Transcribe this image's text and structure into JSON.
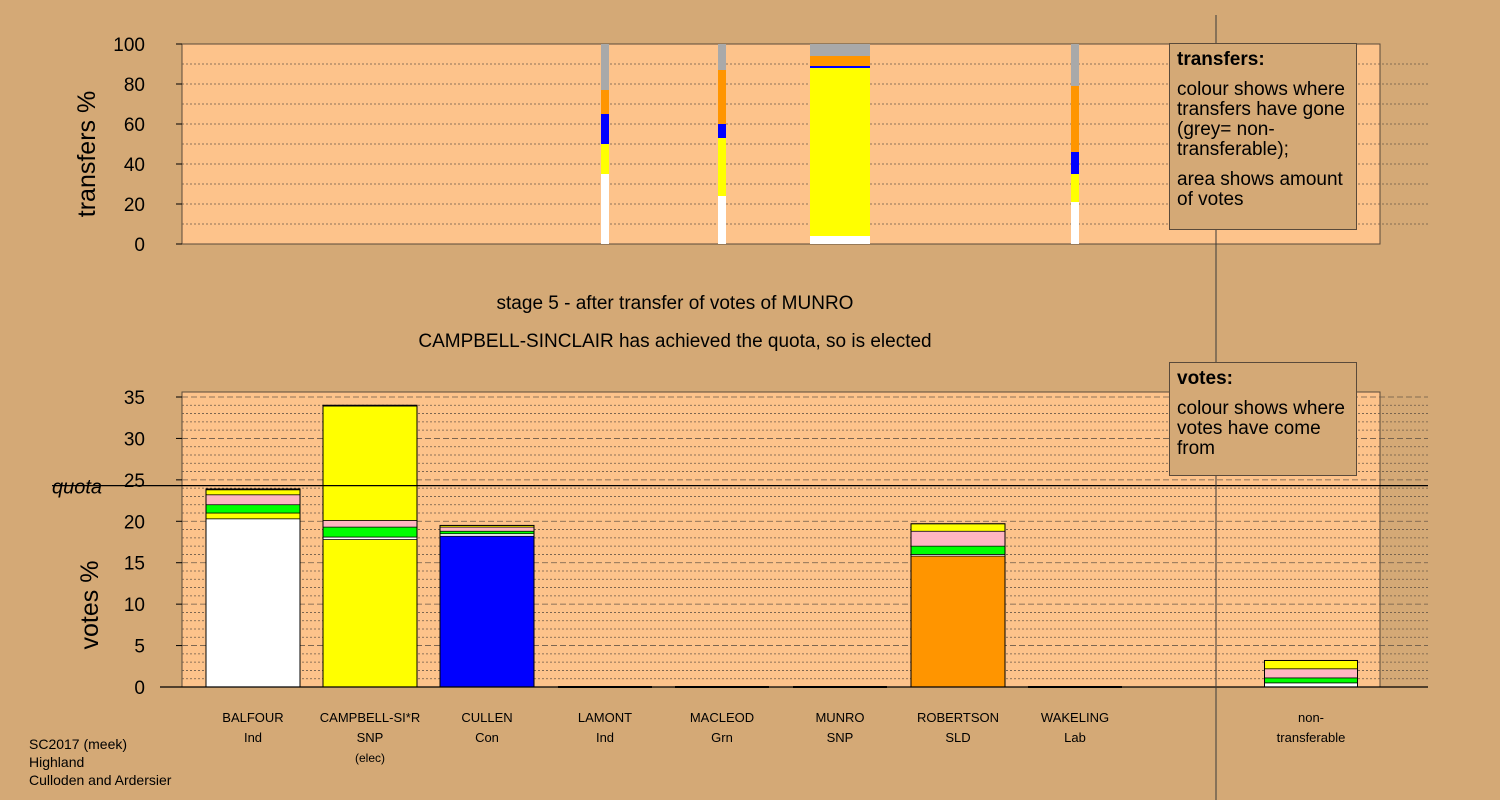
{
  "footer": {
    "line1": "SC2017 (meek)",
    "line2": "Highland",
    "line3": "Culloden and Ardersier"
  },
  "legend_transfers": {
    "title": "transfers:",
    "text1": "colour shows where transfers have gone (grey= non-transferable);",
    "text2": "area shows amount of votes"
  },
  "legend_votes": {
    "title": "votes:",
    "text1": "colour shows where votes have come from"
  },
  "colors": {
    "background": "#d4a976",
    "plot_bg": "#fdc38b",
    "Ind": "#ffffff",
    "SNP": "#ffff00",
    "Con": "#0000ff",
    "Grn": "#00ff00",
    "SLD": "#ff9500",
    "Lab": "#ffb6c1",
    "non_transferable": "#a9a9a9"
  },
  "chart_data": [
    {
      "type": "bar",
      "name": "transfers",
      "ylabel": "transfers %",
      "ylim": [
        0,
        100
      ],
      "yticks": [
        0,
        20,
        40,
        60,
        80,
        100
      ],
      "title": "stage 5 - after transfer of votes of MUNRO",
      "subtitle": "CAMPBELL-SINCLAIR has achieved the quota, so is elected",
      "legend_placement": "top-right",
      "bars": [
        {
          "index": 3,
          "segments": [
            {
              "party": "Ind",
              "value": 35
            },
            {
              "party": "SNP",
              "value": 15
            },
            {
              "party": "Con",
              "value": 15
            },
            {
              "party": "SLD",
              "value": 12
            },
            {
              "party": "non_transferable",
              "value": 23
            }
          ]
        },
        {
          "index": 4,
          "segments": [
            {
              "party": "Ind",
              "value": 24
            },
            {
              "party": "SNP",
              "value": 29
            },
            {
              "party": "Con",
              "value": 7
            },
            {
              "party": "SLD",
              "value": 27
            },
            {
              "party": "non_transferable",
              "value": 13
            }
          ]
        },
        {
          "index": 5,
          "segments": [
            {
              "party": "Ind",
              "value": 4
            },
            {
              "party": "SNP",
              "value": 84
            },
            {
              "party": "Con",
              "value": 1
            },
            {
              "party": "SLD",
              "value": 5
            },
            {
              "party": "non_transferable",
              "value": 6
            }
          ]
        },
        {
          "index": 7,
          "segments": [
            {
              "party": "Ind",
              "value": 21
            },
            {
              "party": "SNP",
              "value": 14
            },
            {
              "party": "Con",
              "value": 11
            },
            {
              "party": "SLD",
              "value": 33
            },
            {
              "party": "non_transferable",
              "value": 21
            }
          ]
        }
      ]
    },
    {
      "type": "bar",
      "name": "votes",
      "ylabel": "votes %",
      "ylim": [
        0,
        35
      ],
      "yticks": [
        0,
        5,
        10,
        15,
        20,
        25,
        30,
        35
      ],
      "quota": 24.3,
      "quota_label": "quota",
      "legend_placement": "top-right",
      "candidates": [
        {
          "name": "BALFOUR",
          "party": "Ind",
          "note": "",
          "segments": [
            {
              "party": "Ind",
              "value": 20.3
            },
            {
              "party": "SNP",
              "value": 0.7
            },
            {
              "party": "Grn",
              "value": 1.0
            },
            {
              "party": "Lab",
              "value": 1.2
            },
            {
              "party": "SNP",
              "value": 0.6
            },
            {
              "party": "Con",
              "value": 0.1
            }
          ]
        },
        {
          "name": "CAMPBELL-SI*R",
          "party": "SNP",
          "note": "(elec)",
          "segments": [
            {
              "party": "SNP",
              "value": 17.8
            },
            {
              "party": "Ind",
              "value": 0.3
            },
            {
              "party": "Grn",
              "value": 1.2
            },
            {
              "party": "Lab",
              "value": 0.8
            },
            {
              "party": "SNP",
              "value": 13.8
            },
            {
              "party": "Con",
              "value": 0.1
            }
          ]
        },
        {
          "name": "CULLEN",
          "party": "Con",
          "note": "",
          "segments": [
            {
              "party": "Con",
              "value": 18.2
            },
            {
              "party": "Ind",
              "value": 0.3
            },
            {
              "party": "Grn",
              "value": 0.3
            },
            {
              "party": "Lab",
              "value": 0.5
            },
            {
              "party": "SNP",
              "value": 0.2
            }
          ]
        },
        {
          "name": "LAMONT",
          "party": "Ind",
          "note": "",
          "segments": []
        },
        {
          "name": "MACLEOD",
          "party": "Grn",
          "note": "",
          "segments": []
        },
        {
          "name": "MUNRO",
          "party": "SNP",
          "note": "",
          "segments": []
        },
        {
          "name": "ROBERTSON",
          "party": "SLD",
          "note": "",
          "segments": [
            {
              "party": "SLD",
              "value": 15.8
            },
            {
              "party": "Ind",
              "value": 0.2
            },
            {
              "party": "Grn",
              "value": 1.0
            },
            {
              "party": "Lab",
              "value": 1.8
            },
            {
              "party": "SNP",
              "value": 0.9
            }
          ]
        },
        {
          "name": "WAKELING",
          "party": "Lab",
          "note": "",
          "segments": []
        },
        {
          "name": "non-",
          "party": "transferable",
          "note": "",
          "nontransferable": true,
          "segments": [
            {
              "party": "Ind",
              "value": 0.5
            },
            {
              "party": "Grn",
              "value": 0.6
            },
            {
              "party": "Lab",
              "value": 1.1
            },
            {
              "party": "SNP",
              "value": 1.0
            }
          ]
        }
      ]
    }
  ]
}
